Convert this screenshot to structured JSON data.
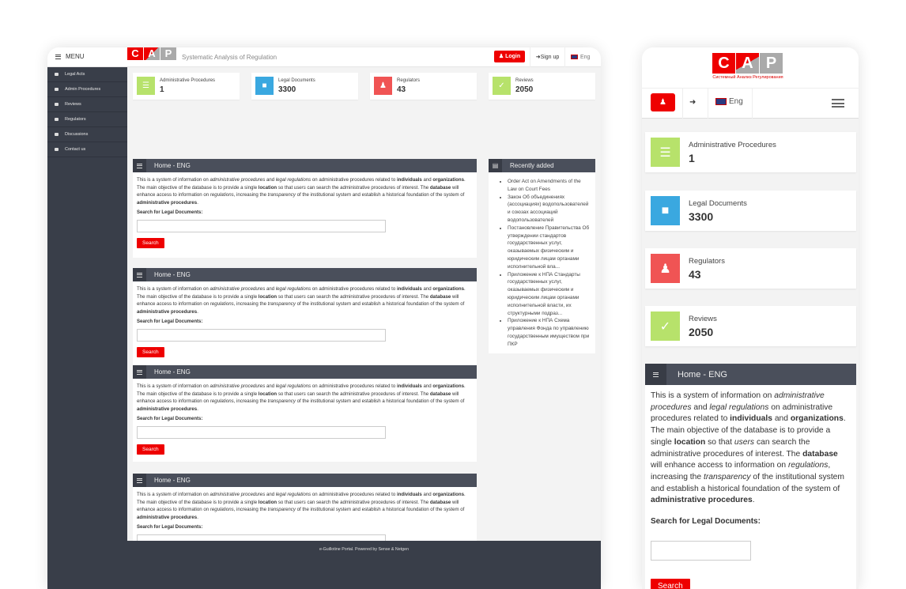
{
  "app": {
    "tagline": "Systematic Analysis of Regulation",
    "logo_letters": [
      "C",
      "A",
      "P"
    ],
    "logo_subtitle": "Системный Анализ Регулирования"
  },
  "header": {
    "menu_label": "MENU",
    "login_label": "Login",
    "signup_label": "Sign up",
    "language": "Eng"
  },
  "sidebar": {
    "items": [
      {
        "label": "Legal Acts",
        "icon": "folder-icon"
      },
      {
        "label": "Admin Procedures",
        "icon": "list-icon"
      },
      {
        "label": "Reviews",
        "icon": "check-square-icon"
      },
      {
        "label": "Regulators",
        "icon": "users-icon"
      },
      {
        "label": "Discussions",
        "icon": "comments-icon"
      },
      {
        "label": "Contact us",
        "icon": "envelope-icon"
      }
    ]
  },
  "stats": [
    {
      "label": "Administrative Procedures",
      "value": "1",
      "color": "#b7e26b",
      "icon": "list-icon"
    },
    {
      "label": "Legal Documents",
      "value": "3300",
      "color": "#3aa8e0",
      "icon": "folder-icon"
    },
    {
      "label": "Regulators",
      "value": "43",
      "color": "#f05454",
      "icon": "users-icon"
    },
    {
      "label": "Reviews",
      "value": "2050",
      "color": "#b7e26b",
      "icon": "check-square-icon"
    }
  ],
  "home_panel": {
    "title": "Home - ENG",
    "paragraph": [
      {
        "t": "This is a system of information on "
      },
      {
        "t": "administrative procedures",
        "s": "i"
      },
      {
        "t": " and "
      },
      {
        "t": "legal regulations",
        "s": "i"
      },
      {
        "t": " on administrative procedures related to "
      },
      {
        "t": "individuals",
        "s": "b"
      },
      {
        "t": " and "
      },
      {
        "t": "organizations",
        "s": "b"
      },
      {
        "t": ". The main objective of the database is to provide a single "
      },
      {
        "t": "location",
        "s": "b"
      },
      {
        "t": " so that "
      },
      {
        "t": "users",
        "s": "i"
      },
      {
        "t": " can search the administrative procedures of interest. The "
      },
      {
        "t": "database",
        "s": "b"
      },
      {
        "t": " will enhance access to information on "
      },
      {
        "t": "regulations",
        "s": "i"
      },
      {
        "t": ", increasing the "
      },
      {
        "t": "transparency",
        "s": "i"
      },
      {
        "t": " of the institutional system and establish a historical foundation of the system of "
      },
      {
        "t": "administrative procedures",
        "s": "b"
      },
      {
        "t": "."
      }
    ],
    "search_label": "Search for Legal Documents:",
    "search_value": "",
    "search_button": "Search"
  },
  "recent": {
    "title": "Recently added",
    "items": [
      "Order Act on Amendments of the Law on Court Fees",
      "Закон Об объединениях (ассоциациях) водопользователей и союзах ассоциаций водопользователей",
      "Постановление Правительства Об утверждении стандартов государственных услуг, оказываемых физическим и юридическим лицам органами исполнительной вла...",
      "Приложение к НПА Стандарты государственных услуг, оказываемых физическим и юридическим лицам органами исполнительной власти, их структурными подраз...",
      "Приложение к НПА Схема управления Фонда по управлению государственным имуществом при ПКР"
    ]
  },
  "footer": {
    "text": "e-Guillotine Portal. Powered by Sense & Netgen"
  },
  "colors": {
    "accent": "#e00000",
    "sidebar": "#393e49",
    "panel_header": "#4a4f5b"
  }
}
